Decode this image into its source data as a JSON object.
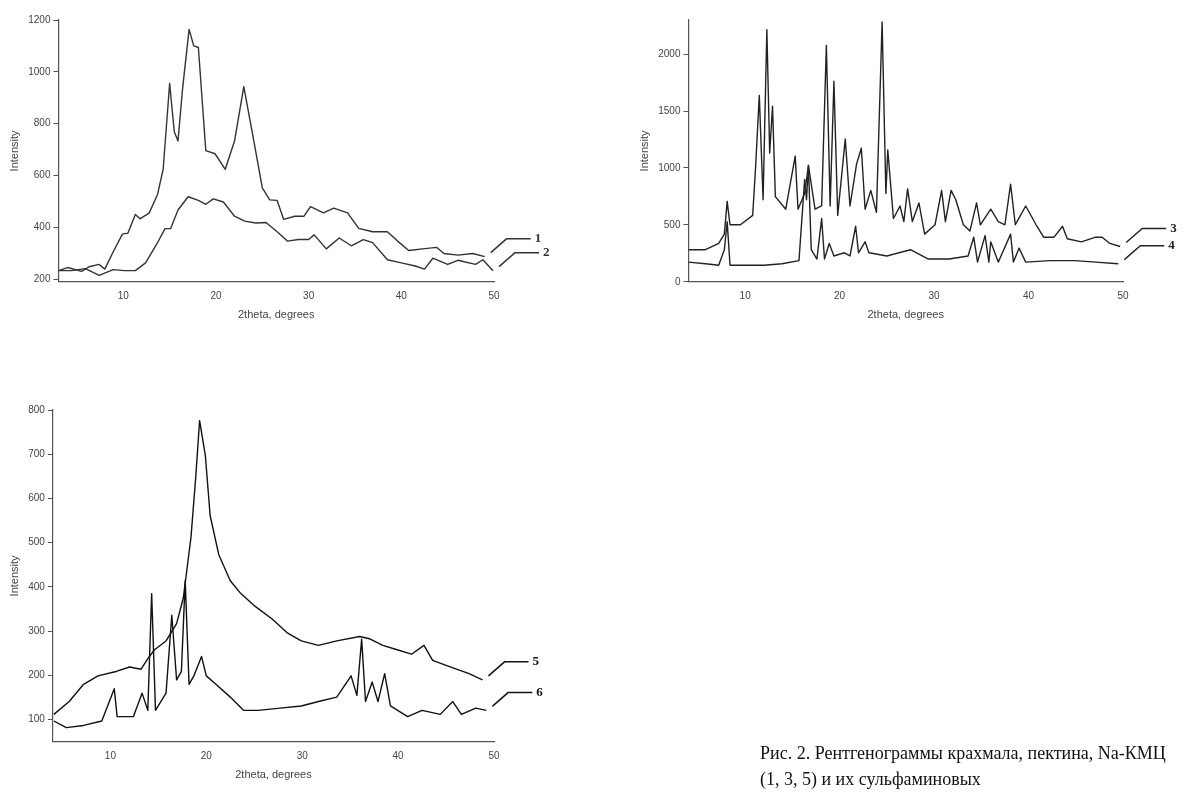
{
  "chart_data": [
    {
      "type": "line",
      "xlabel": "2theta, degrees",
      "ylabel": "Intensity",
      "xlim": [
        3,
        50
      ],
      "xticks": [
        10,
        20,
        30,
        40,
        50
      ],
      "ylim": [
        190,
        1200
      ],
      "yticks": [
        200,
        400,
        600,
        800,
        1000,
        1200
      ],
      "marker": "none",
      "legend": "right",
      "series": [
        {
          "name": "1",
          "color": "#333333",
          "x": [
            3,
            4.0,
            5.5,
            6.3,
            7.4,
            8.0,
            8.9,
            9.9,
            10.5,
            11.3,
            11.8,
            12.8,
            13.7,
            14.3,
            15.0,
            15.5,
            15.9,
            16.4,
            17.1,
            17.6,
            18.1,
            18.9,
            19.9,
            21.0,
            22.0,
            23.0,
            23.9,
            25.0,
            25.8,
            26.6,
            27.3,
            28.5,
            29.5,
            30.2,
            31.6,
            32.7,
            34.2,
            35.4,
            36.9,
            38.5,
            39.6,
            40.8,
            42.3,
            43.8,
            44.6,
            46.1,
            47.7,
            49.0
          ],
          "values": [
            233,
            245,
            230,
            248,
            257,
            239,
            305,
            374,
            378,
            450,
            433,
            456,
            528,
            624,
            955,
            769,
            733,
            937,
            1164,
            1100,
            1094,
            696,
            684,
            624,
            733,
            943,
            769,
            552,
            506,
            504,
            431,
            443,
            443,
            480,
            456,
            474,
            456,
            396,
            383,
            383,
            347,
            311,
            317,
            323,
            299,
            293,
            299,
            287
          ]
        },
        {
          "name": "2",
          "color": "#333333",
          "x": [
            3,
            4.4,
            5.9,
            7.4,
            8.9,
            10.1,
            11.3,
            12.4,
            13.6,
            14.5,
            15.1,
            15.9,
            17.0,
            18.1,
            18.9,
            19.7,
            20.8,
            22.0,
            23.1,
            24.3,
            25.4,
            26.6,
            27.7,
            28.9,
            30.0,
            30.6,
            31.9,
            33.3,
            34.6,
            35.9,
            36.9,
            38.5,
            40.0,
            41.5,
            42.5,
            43.4,
            45.0,
            46.1,
            48.0,
            48.8,
            49.9
          ],
          "values": [
            233,
            233,
            241,
            215,
            237,
            233,
            233,
            263,
            335,
            395,
            395,
            467,
            518,
            504,
            489,
            510,
            498,
            443,
            424,
            417,
            419,
            383,
            347,
            353,
            353,
            371,
            317,
            359,
            329,
            353,
            341,
            275,
            263,
            251,
            239,
            281,
            257,
            273,
            257,
            275,
            233
          ]
        }
      ]
    },
    {
      "type": "line",
      "xlabel": "2theta, degrees",
      "ylabel": "Intensity",
      "xlim": [
        4,
        50
      ],
      "xticks": [
        10,
        20,
        30,
        40,
        50
      ],
      "ylim": [
        0,
        2300
      ],
      "yticks": [
        0,
        500,
        1000,
        1500,
        2000
      ],
      "marker": "none",
      "legend": "right",
      "series": [
        {
          "name": "3",
          "color": "#222222",
          "x": [
            4.0,
            5.8,
            7.2,
            7.8,
            8.1,
            8.4,
            9.5,
            10.8,
            11.1,
            11.5,
            11.9,
            12.3,
            12.6,
            12.9,
            13.2,
            14.3,
            15.3,
            15.6,
            16.3,
            16.7,
            17.4,
            18.1,
            18.6,
            19.0,
            19.4,
            19.8,
            20.6,
            21.1,
            21.8,
            22.3,
            22.7,
            23.3,
            23.9,
            24.5,
            24.9,
            25.1,
            25.7,
            26.4,
            26.8,
            27.2,
            27.7,
            28.4,
            29.0,
            30.1,
            30.8,
            31.2,
            31.8,
            32.3,
            33.1,
            33.8,
            34.5,
            34.9,
            36.0,
            36.8,
            37.5,
            38.1,
            38.6,
            39.7,
            40.8,
            41.6,
            42.7,
            43.6,
            44.1,
            45.6,
            47.1,
            47.8,
            48.6,
            49.7
          ],
          "values": [
            282,
            282,
            337,
            419,
            707,
            501,
            501,
            584,
            995,
            1638,
            721,
            2214,
            1132,
            1542,
            748,
            638,
            1104,
            638,
            775,
            1022,
            638,
            666,
            2077,
            666,
            1762,
            584,
            1255,
            666,
            1036,
            1173,
            638,
            803,
            611,
            2282,
            775,
            1159,
            556,
            666,
            529,
            816,
            529,
            693,
            419,
            501,
            803,
            529,
            803,
            721,
            501,
            447,
            693,
            501,
            638,
            529,
            501,
            858,
            501,
            666,
            501,
            392,
            392,
            488,
            378,
            351,
            392,
            392,
            337,
            310
          ]
        },
        {
          "name": "4",
          "color": "#222222",
          "x": [
            4.0,
            5.8,
            7.2,
            7.8,
            8.1,
            8.4,
            10.2,
            12.0,
            13.9,
            15.7,
            16.3,
            16.5,
            16.7,
            17.0,
            17.6,
            18.1,
            18.4,
            18.9,
            19.4,
            20.5,
            21.1,
            21.7,
            22.0,
            22.7,
            23.1,
            25.0,
            27.5,
            29.4,
            31.6,
            33.6,
            34.2,
            34.6,
            35.4,
            35.8,
            36.0,
            36.8,
            38.1,
            38.4,
            39.0,
            39.7,
            42.3,
            44.9,
            47.1,
            49.5
          ],
          "values": [
            173,
            159,
            145,
            282,
            529,
            145,
            145,
            145,
            159,
            186,
            899,
            721,
            1022,
            282,
            200,
            556,
            200,
            337,
            227,
            255,
            227,
            488,
            255,
            351,
            255,
            227,
            282,
            200,
            200,
            227,
            392,
            173,
            406,
            173,
            351,
            173,
            419,
            173,
            296,
            173,
            186,
            186,
            173,
            159
          ]
        }
      ]
    },
    {
      "type": "line",
      "xlabel": "2theta, degrees",
      "ylabel": "Intensity",
      "xlim": [
        4,
        50
      ],
      "xticks": [
        10,
        20,
        30,
        40,
        50
      ],
      "ylim": [
        50,
        800
      ],
      "yticks": [
        100,
        200,
        300,
        400,
        500,
        600,
        700,
        800
      ],
      "marker": "none",
      "legend": "right",
      "series": [
        {
          "name": "5",
          "color": "#111111",
          "x": [
            4.1,
            5.7,
            7.2,
            8.7,
            10.6,
            12.0,
            13.2,
            13.9,
            14.6,
            15.8,
            16.9,
            17.6,
            18.4,
            18.9,
            19.3,
            19.9,
            20.4,
            21.3,
            22.5,
            23.6,
            25.1,
            26.9,
            28.4,
            29.9,
            31.7,
            33.6,
            36.0,
            37.0,
            38.4,
            39.9,
            41.4,
            42.7,
            43.6,
            45.5,
            47.4,
            48.8
          ],
          "values": [
            112,
            141,
            180,
            199,
            209,
            219,
            214,
            238,
            258,
            278,
            317,
            375,
            512,
            649,
            776,
            697,
            561,
            473,
            414,
            385,
            356,
            327,
            297,
            278,
            268,
            278,
            288,
            283,
            268,
            258,
            248,
            268,
            234,
            219,
            204,
            190
          ]
        },
        {
          "name": "6",
          "color": "#111111",
          "x": [
            4.1,
            5.4,
            7.2,
            9.1,
            10.4,
            10.7,
            12.4,
            13.3,
            13.9,
            14.3,
            14.7,
            15.8,
            16.4,
            16.9,
            17.4,
            17.8,
            18.2,
            18.7,
            19.5,
            20.0,
            21.0,
            22.5,
            23.9,
            25.4,
            27.7,
            29.9,
            31.7,
            33.6,
            35.1,
            35.7,
            36.2,
            36.6,
            37.3,
            37.9,
            38.6,
            39.2,
            41.0,
            42.5,
            44.4,
            45.7,
            46.6,
            48.1,
            49.2
          ],
          "values": [
            97,
            82,
            87,
            97,
            170,
            107,
            107,
            160,
            121,
            385,
            121,
            160,
            336,
            190,
            209,
            414,
            180,
            199,
            243,
            199,
            180,
            151,
            121,
            121,
            126,
            131,
            141,
            151,
            199,
            155,
            282,
            141,
            185,
            141,
            204,
            131,
            107,
            121,
            112,
            141,
            112,
            126,
            121
          ]
        }
      ]
    },
    {
      "type": "other",
      "annotations": [
        "Рис. 2. Рентгенограммы  крахмала, пектина, Na-КМЦ (1, 3, 5) и их сульфаминовых"
      ]
    }
  ]
}
